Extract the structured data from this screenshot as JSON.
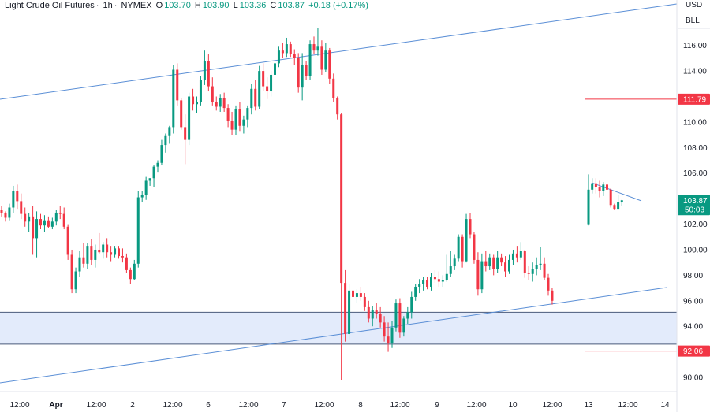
{
  "header": {
    "symbol_name": "Light Crude Oil Futures",
    "interval": "1h",
    "exchange": "NYMEX",
    "open_label": "O",
    "open": "103.70",
    "high_label": "H",
    "high": "103.90",
    "low_label": "L",
    "low": "103.36",
    "close_label": "C",
    "close": "103.87",
    "change": "+0.18 (+0.17%)"
  },
  "corner": {
    "currency": "USD",
    "unit": "BLL"
  },
  "colors": {
    "up": "#089981",
    "down": "#f23645",
    "trendline": "#5b8fd6",
    "zone_fill": "#e3ebfb",
    "level": "#f23645"
  },
  "chart_data": {
    "type": "candlestick",
    "y_axis": {
      "ylim": [
        89.2,
        117.4
      ],
      "ticks": [
        90,
        92,
        94,
        96,
        98,
        100,
        102,
        104,
        106,
        108,
        110,
        112,
        114,
        116
      ],
      "tick_labels": [
        "90.00",
        "92.00",
        "94.00",
        "96.00",
        "98.00",
        "100.00",
        "102.00",
        "104.00",
        "106.00",
        "108.00",
        "110.00",
        "112.00",
        "114.00",
        "116.00"
      ],
      "partial_top_label": "118.00"
    },
    "x_axis": {
      "labels": [
        "12:00",
        "Apr",
        "12:00",
        "2",
        "12:00",
        "6",
        "12:00",
        "7",
        "12:00",
        "8",
        "12:00",
        "9",
        "12:00",
        "10",
        "12:00",
        "13",
        "12:00",
        "14"
      ]
    },
    "price_labels": [
      {
        "value": 103.87,
        "text": "103.87",
        "sub": "50:03",
        "color": "#089981"
      },
      {
        "value": 111.79,
        "text": "111.79",
        "color": "#f23645"
      },
      {
        "value": 92.06,
        "text": "92.06",
        "color": "#f23645"
      }
    ],
    "horizontal_levels": [
      111.79,
      92.06
    ],
    "zone": {
      "top": 95.1,
      "bottom": 92.6
    },
    "trendlines": [
      {
        "from": [
          0,
          112.7
        ],
        "to": [
          100,
          116.6
        ]
      },
      {
        "from": [
          0,
          89.3
        ],
        "to": [
          100,
          98.1
        ]
      },
      {
        "from": [
          0,
          105.6
        ],
        "to": [
          100,
          105.6
        ]
      }
    ],
    "series": [
      {
        "segment": 1,
        "ohlc": [
          [
            103.1,
            103.4,
            102.6,
            102.9
          ],
          [
            102.9,
            103.0,
            102.2,
            102.5
          ],
          [
            102.5,
            103.6,
            102.3,
            103.3
          ],
          [
            103.3,
            105.0,
            102.9,
            104.6
          ],
          [
            104.6,
            105.1,
            103.2,
            103.8
          ],
          [
            103.8,
            104.4,
            102.4,
            102.8
          ],
          [
            102.8,
            103.3,
            101.8,
            102.2
          ],
          [
            102.2,
            102.9,
            101.4,
            102.6
          ],
          [
            102.6,
            103.4,
            99.6,
            100.9
          ],
          [
            100.9,
            103.0,
            99.4,
            102.4
          ],
          [
            102.4,
            102.8,
            101.6,
            101.9
          ],
          [
            101.9,
            102.7,
            101.4,
            102.3
          ],
          [
            102.3,
            102.6,
            101.7,
            101.8
          ],
          [
            101.8,
            102.5,
            101.6,
            102.2
          ],
          [
            102.2,
            103.1,
            101.9,
            102.9
          ],
          [
            102.9,
            103.4,
            102.4,
            102.8
          ],
          [
            102.8,
            103.3,
            101.6,
            101.8
          ],
          [
            101.8,
            102.0,
            99.2,
            99.6
          ],
          [
            99.6,
            100.0,
            96.6,
            96.9
          ],
          [
            96.9,
            98.6,
            96.6,
            98.3
          ],
          [
            98.3,
            99.9,
            97.9,
            99.4
          ],
          [
            99.4,
            100.5,
            98.6,
            98.9
          ],
          [
            98.9,
            100.5,
            98.5,
            100.3
          ],
          [
            100.3,
            100.8,
            98.8,
            99.2
          ],
          [
            99.2,
            100.4,
            98.6,
            100.0
          ],
          [
            100.0,
            101.3,
            99.7,
            99.8
          ],
          [
            99.8,
            100.6,
            99.3,
            100.4
          ],
          [
            100.4,
            100.9,
            99.4,
            99.8
          ],
          [
            99.8,
            100.3,
            99.1,
            99.6
          ],
          [
            99.6,
            100.3,
            99.4,
            100.1
          ],
          [
            100.1,
            100.3,
            99.3,
            99.5
          ],
          [
            99.5,
            100.1,
            99.0,
            99.4
          ],
          [
            99.4,
            99.7,
            98.2,
            98.4
          ],
          [
            98.4,
            98.6,
            97.3,
            97.7
          ],
          [
            97.7,
            99.2,
            97.6,
            98.9
          ],
          [
            98.9,
            104.6,
            98.6,
            104.1
          ],
          [
            104.1,
            104.6,
            103.7,
            104.3
          ],
          [
            104.3,
            105.7,
            103.9,
            105.4
          ],
          [
            105.4,
            105.6,
            105.0,
            105.6
          ],
          [
            105.6,
            106.6,
            104.9,
            106.5
          ],
          [
            106.5,
            107.0,
            106.1,
            106.8
          ],
          [
            106.8,
            108.6,
            106.6,
            108.2
          ],
          [
            108.2,
            109.1,
            107.6,
            108.9
          ],
          [
            108.9,
            109.7,
            108.3,
            109.6
          ],
          [
            109.6,
            114.5,
            109.1,
            114.1
          ],
          [
            114.1,
            114.6,
            111.3,
            111.7
          ],
          [
            111.7,
            111.9,
            109.4,
            109.6
          ],
          [
            109.6,
            110.6,
            106.7,
            108.6
          ],
          [
            108.6,
            112.3,
            108.2,
            112.0
          ],
          [
            112.0,
            112.6,
            110.9,
            111.4
          ],
          [
            111.4,
            112.0,
            110.7,
            111.6
          ],
          [
            111.6,
            113.6,
            111.3,
            113.3
          ],
          [
            113.3,
            115.6,
            112.9,
            114.8
          ],
          [
            114.8,
            115.3,
            112.4,
            112.8
          ],
          [
            112.8,
            113.5,
            111.3,
            111.6
          ],
          [
            111.6,
            112.0,
            110.9,
            111.2
          ],
          [
            111.2,
            112.2,
            110.8,
            111.9
          ],
          [
            111.9,
            112.3,
            110.8,
            111.1
          ],
          [
            111.1,
            111.4,
            109.6,
            110.1
          ],
          [
            110.1,
            110.8,
            109.0,
            109.4
          ],
          [
            109.4,
            111.3,
            109.0,
            111.0
          ],
          [
            111.0,
            111.6,
            109.3,
            109.7
          ],
          [
            109.7,
            110.5,
            109.1,
            110.2
          ],
          [
            110.2,
            111.3,
            109.6,
            111.1
          ],
          [
            111.1,
            113.0,
            110.6,
            112.6
          ],
          [
            112.6,
            113.3,
            110.9,
            111.2
          ],
          [
            111.2,
            114.4,
            111.0,
            114.0
          ],
          [
            114.0,
            114.6,
            112.4,
            112.8
          ],
          [
            112.8,
            113.5,
            111.8,
            112.4
          ],
          [
            112.4,
            114.0,
            112.0,
            113.7
          ],
          [
            113.7,
            114.9,
            113.3,
            114.6
          ],
          [
            114.6,
            115.9,
            114.3,
            115.6
          ],
          [
            115.6,
            116.2,
            115.0,
            115.4
          ],
          [
            115.4,
            116.6,
            115.1,
            116.1
          ],
          [
            116.1,
            116.3,
            115.1,
            115.3
          ],
          [
            115.3,
            115.7,
            114.5,
            115.0
          ],
          [
            115.0,
            115.4,
            112.3,
            112.7
          ],
          [
            112.7,
            115.4,
            111.7,
            114.5
          ],
          [
            114.5,
            114.8,
            113.3,
            113.6
          ],
          [
            113.6,
            116.4,
            113.3,
            116.1
          ],
          [
            116.1,
            116.7,
            115.3,
            115.6
          ],
          [
            115.6,
            117.4,
            115.2,
            115.9
          ],
          [
            115.9,
            116.4,
            113.7,
            114.1
          ],
          [
            114.1,
            116.2,
            113.9,
            115.6
          ],
          [
            115.6,
            115.8,
            113.0,
            113.4
          ],
          [
            113.4,
            113.8,
            111.6,
            111.9
          ],
          [
            111.9,
            112.0,
            110.2,
            110.6
          ],
          [
            110.6,
            110.7,
            89.8,
            97.4
          ],
          [
            97.4,
            98.4,
            92.8,
            93.4
          ],
          [
            93.4,
            97.3,
            93.0,
            96.8
          ],
          [
            96.8,
            97.4,
            95.9,
            96.3
          ],
          [
            96.3,
            96.9,
            95.8,
            96.6
          ],
          [
            96.6,
            97.1,
            96.0,
            96.3
          ],
          [
            96.3,
            96.6,
            95.2,
            95.5
          ],
          [
            95.5,
            96.0,
            94.3,
            94.6
          ],
          [
            94.6,
            95.6,
            94.0,
            95.3
          ],
          [
            95.3,
            95.8,
            94.6,
            95.0
          ],
          [
            95.0,
            95.5,
            93.9,
            94.3
          ],
          [
            94.3,
            94.8,
            92.8,
            93.2
          ],
          [
            93.2,
            94.3,
            92.0,
            92.7
          ],
          [
            92.7,
            94.4,
            92.3,
            93.9
          ],
          [
            93.9,
            96.1,
            93.6,
            95.8
          ],
          [
            95.8,
            96.2,
            93.1,
            93.5
          ],
          [
            93.5,
            94.8,
            93.2,
            94.6
          ],
          [
            94.6,
            95.5,
            94.2,
            95.1
          ],
          [
            95.1,
            96.7,
            94.6,
            96.3
          ],
          [
            96.3,
            97.3,
            96.0,
            97.1
          ],
          [
            97.1,
            97.7,
            96.6,
            97.3
          ],
          [
            97.3,
            97.9,
            96.8,
            97.6
          ],
          [
            97.6,
            97.9,
            96.9,
            97.1
          ],
          [
            97.1,
            98.2,
            96.8,
            97.9
          ],
          [
            97.9,
            98.4,
            97.4,
            97.7
          ],
          [
            97.7,
            98.3,
            97.1,
            97.5
          ],
          [
            97.5,
            98.0,
            97.1,
            97.6
          ],
          [
            97.6,
            99.6,
            97.5,
            98.1
          ],
          [
            98.1,
            99.9,
            97.9,
            98.7
          ],
          [
            98.7,
            99.6,
            98.4,
            99.3
          ],
          [
            99.3,
            101.2,
            99.1,
            101.0
          ],
          [
            101.0,
            101.2,
            98.6,
            99.1
          ],
          [
            99.1,
            102.8,
            99.0,
            102.4
          ],
          [
            102.4,
            102.9,
            100.9,
            101.2
          ],
          [
            101.2,
            101.4,
            98.9,
            99.2
          ],
          [
            99.2,
            99.8,
            96.4,
            96.9
          ],
          [
            96.9,
            99.7,
            96.6,
            99.1
          ],
          [
            99.1,
            99.9,
            98.3,
            98.7
          ],
          [
            98.7,
            99.7,
            98.4,
            99.4
          ],
          [
            99.4,
            99.6,
            98.0,
            98.5
          ],
          [
            98.5,
            99.9,
            98.2,
            99.4
          ],
          [
            99.4,
            99.7,
            98.7,
            99.0
          ],
          [
            99.0,
            99.5,
            97.9,
            98.3
          ],
          [
            98.3,
            99.6,
            98.1,
            99.2
          ],
          [
            99.2,
            100.0,
            98.8,
            99.7
          ],
          [
            99.7,
            100.3,
            99.0,
            99.4
          ],
          [
            99.4,
            100.6,
            99.2,
            99.9
          ],
          [
            99.9,
            100.0,
            97.8,
            98.2
          ],
          [
            98.2,
            98.7,
            97.6,
            98.1
          ],
          [
            98.1,
            99.0,
            97.5,
            98.5
          ],
          [
            98.5,
            99.4,
            98.0,
            98.8
          ],
          [
            98.8,
            100.2,
            98.4,
            98.9
          ],
          [
            98.9,
            99.4,
            97.6,
            97.8
          ],
          [
            97.8,
            98.1,
            96.4,
            96.8
          ],
          [
            96.8,
            97.0,
            95.7,
            96.0
          ]
        ]
      },
      {
        "segment": 2,
        "ohlc": [
          [
            102.0,
            105.9,
            101.9,
            104.7
          ],
          [
            104.7,
            105.6,
            104.4,
            105.2
          ],
          [
            105.2,
            105.6,
            104.4,
            104.9
          ],
          [
            104.9,
            105.4,
            104.1,
            104.6
          ],
          [
            104.6,
            105.3,
            104.2,
            105.1
          ],
          [
            105.1,
            105.4,
            104.5,
            104.7
          ],
          [
            104.7,
            104.8,
            103.3,
            103.5
          ],
          [
            103.5,
            103.6,
            103.1,
            103.2
          ],
          [
            103.2,
            104.3,
            103.2,
            103.7
          ],
          [
            103.7,
            103.9,
            103.4,
            103.87
          ]
        ]
      }
    ]
  }
}
